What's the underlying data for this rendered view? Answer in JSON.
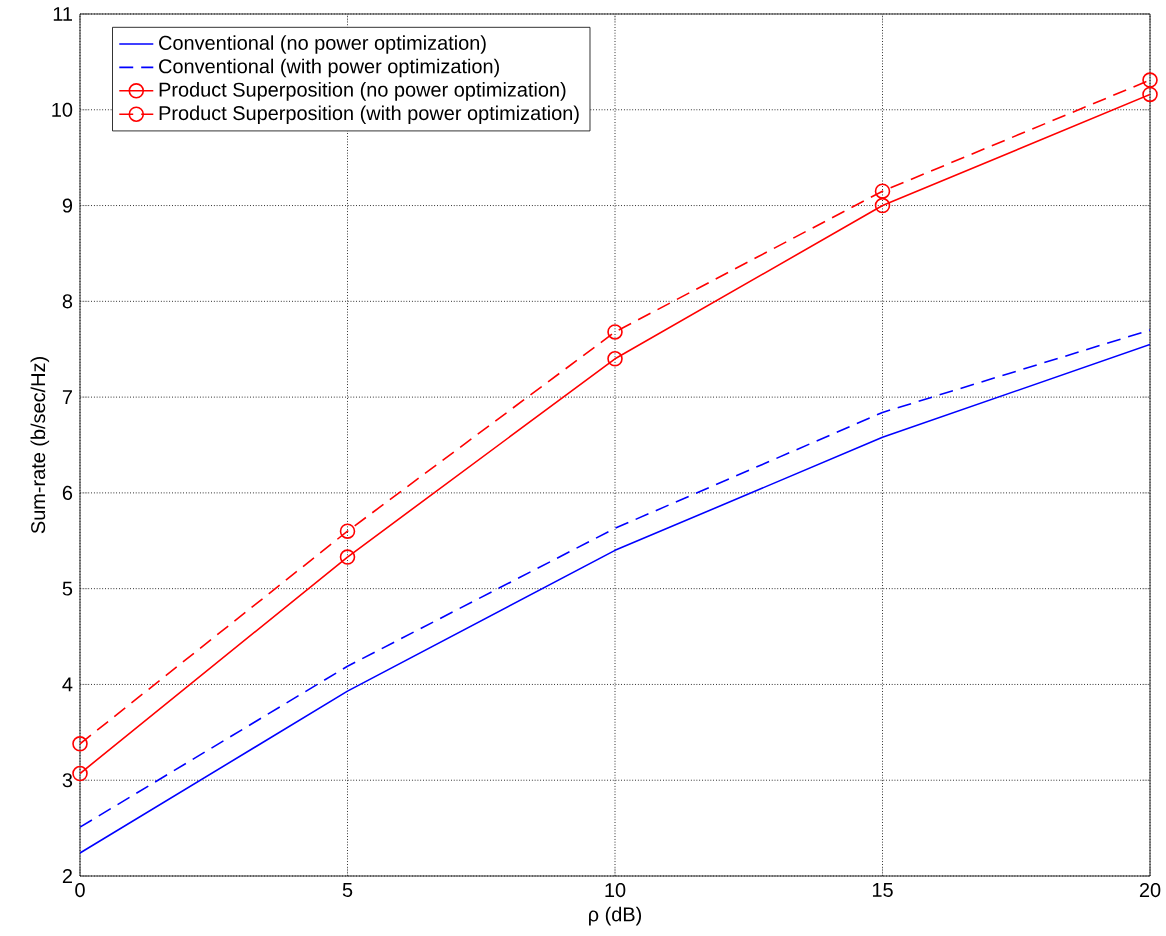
{
  "chart_data": {
    "type": "line",
    "xlabel": "ρ (dB)",
    "ylabel": "Sum-rate (b/sec/Hz)",
    "x": [
      0,
      5,
      10,
      15,
      20
    ],
    "series": [
      {
        "name": "Conventional (no power optimization)",
        "color": "#0000ff",
        "line_style": "solid",
        "marker": "none",
        "values": [
          2.24,
          3.93,
          5.4,
          6.58,
          7.55
        ]
      },
      {
        "name": "Conventional (with power optimization)",
        "color": "#0000ff",
        "line_style": "dashed",
        "marker": "none",
        "values": [
          2.51,
          4.19,
          5.63,
          6.84,
          7.7
        ]
      },
      {
        "name": "Product Superposition (no power optimization)",
        "color": "#ff0000",
        "line_style": "solid",
        "marker": "circle",
        "values": [
          3.07,
          5.33,
          7.4,
          9.0,
          10.16
        ]
      },
      {
        "name": "Product Superposition (with power optimization)",
        "color": "#ff0000",
        "line_style": "dashed",
        "marker": "circle",
        "values": [
          3.38,
          5.6,
          7.68,
          9.15,
          10.31
        ]
      }
    ],
    "xlim": [
      0,
      20
    ],
    "ylim": [
      2,
      11
    ],
    "xticks": [
      0,
      5,
      10,
      15,
      20
    ],
    "yticks": [
      2,
      3,
      4,
      5,
      6,
      7,
      8,
      9,
      10,
      11
    ],
    "grid": true,
    "legend": "top left"
  }
}
